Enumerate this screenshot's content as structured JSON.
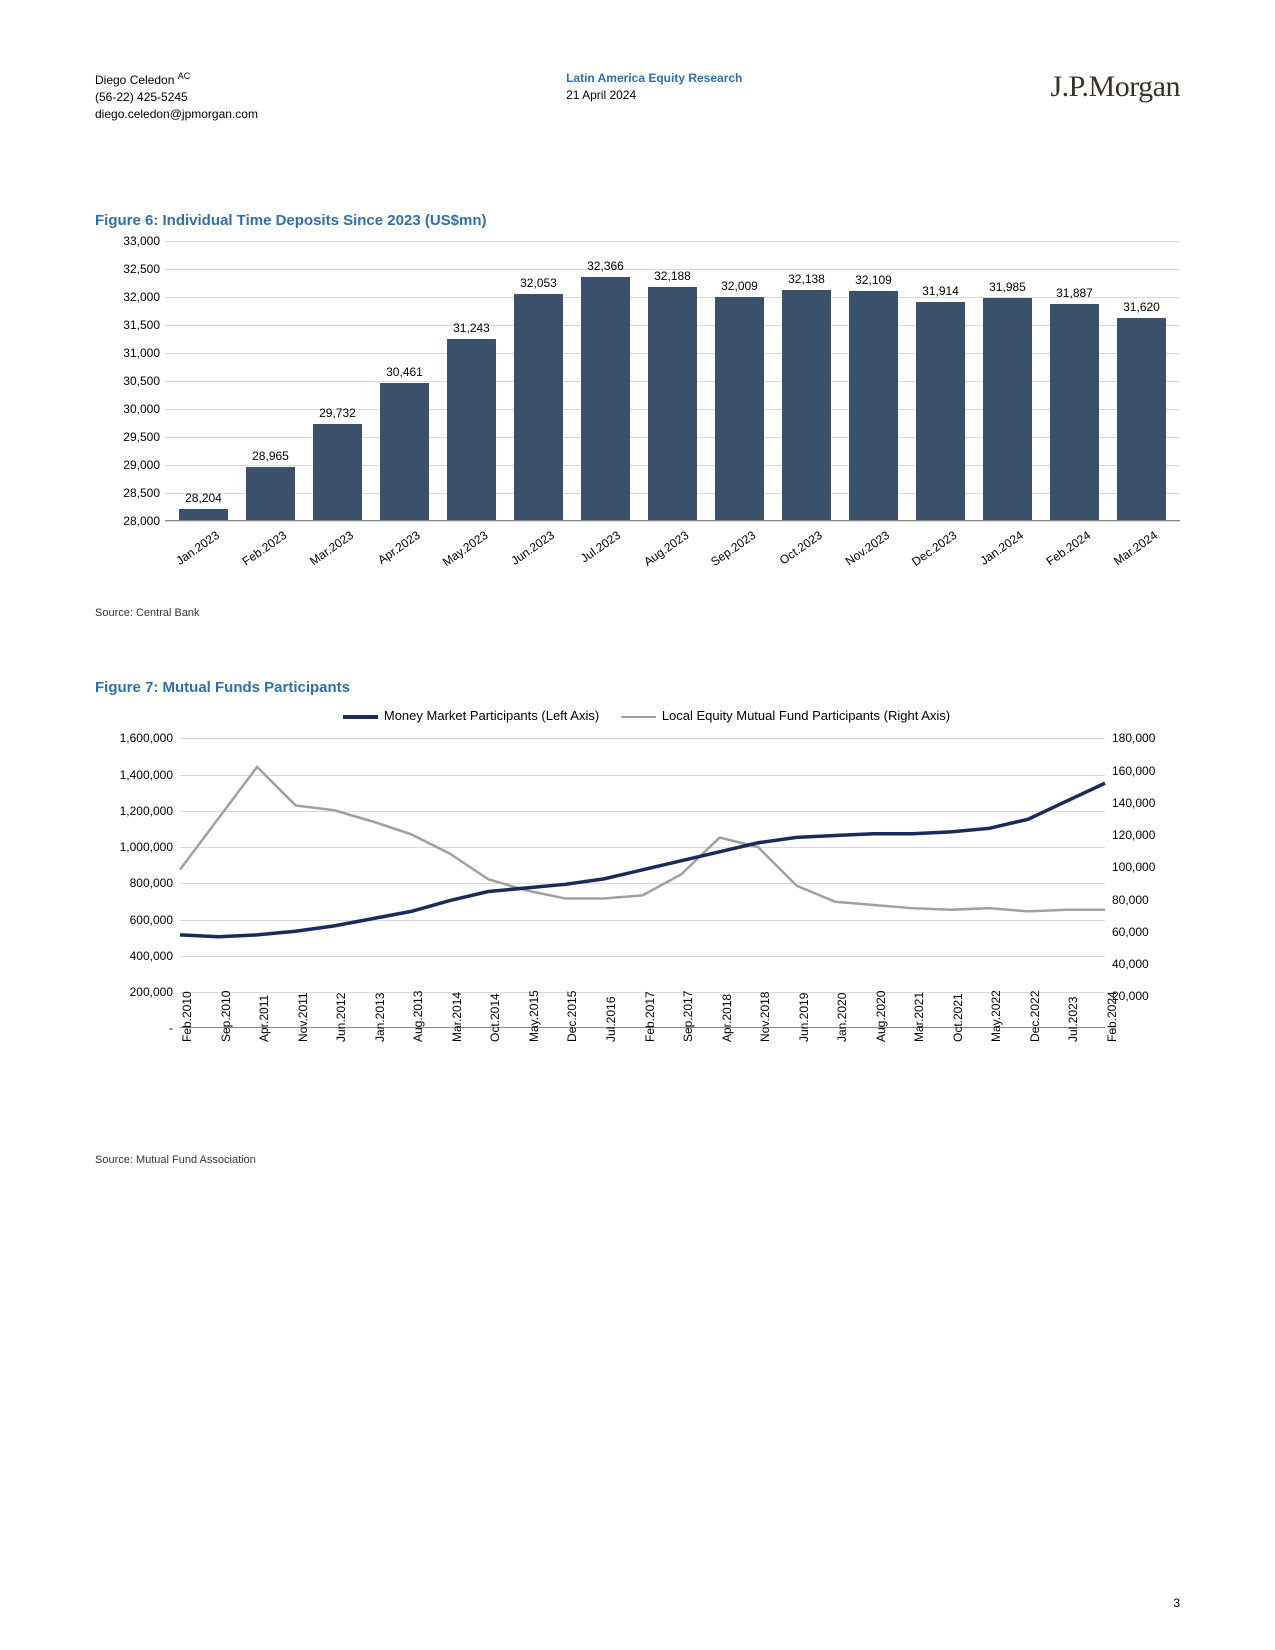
{
  "header": {
    "author": "Diego Celedon",
    "author_sup": "AC",
    "phone": "(56-22) 425-5245",
    "email": "diego.celedon@jpmorgan.com",
    "dept": "Latin America Equity Research",
    "date": "21 April 2024",
    "logo": "J.P.Morgan"
  },
  "page_number": "3",
  "figure6": {
    "title": "Figure 6: Individual Time Deposits Since 2023 (US$mn)",
    "source": "Source: Central Bank",
    "type": "bar",
    "bar_color": "#3a506b",
    "grid_color": "#d9d9d9",
    "label_fontsize": 12,
    "ylim": [
      28000,
      33000
    ],
    "ytick_step": 500,
    "yticks": [
      "28,000",
      "28,500",
      "29,000",
      "29,500",
      "30,000",
      "30,500",
      "31,000",
      "31,500",
      "32,000",
      "32,500",
      "33,000"
    ],
    "categories": [
      "Jan.2023",
      "Feb.2023",
      "Mar.2023",
      "Apr.2023",
      "May.2023",
      "Jun.2023",
      "Jul.2023",
      "Aug.2023",
      "Sep.2023",
      "Oct.2023",
      "Nov.2023",
      "Dec.2023",
      "Jan.2024",
      "Feb.2024",
      "Mar.2024"
    ],
    "values": [
      28204,
      28965,
      29732,
      30461,
      31243,
      32053,
      32366,
      32188,
      32009,
      32138,
      32109,
      31914,
      31985,
      31887,
      31620
    ],
    "value_labels": [
      "28,204",
      "28,965",
      "29,732",
      "30,461",
      "31,243",
      "32,053",
      "32,366",
      "32,188",
      "32,009",
      "32,138",
      "32,109",
      "31,914",
      "31,985",
      "31,887",
      "31,620"
    ]
  },
  "figure7": {
    "title": "Figure 7: Mutual Funds Participants",
    "source": "Source: Mutual Fund Association",
    "type": "line",
    "grid_color": "#d9d9d9",
    "series": [
      {
        "name": "Money Market Participants (Left Axis)",
        "color": "#1a2a5a",
        "width": 3.5,
        "axis": "left"
      },
      {
        "name": "Local Equity Mutual Fund Participants (Right Axis)",
        "color": "#a0a0a0",
        "width": 2.5,
        "axis": "right"
      }
    ],
    "left_ylim": [
      0,
      1600000
    ],
    "left_ticks": [
      "-",
      "200,000",
      "400,000",
      "600,000",
      "800,000",
      "1,000,000",
      "1,200,000",
      "1,400,000",
      "1,600,000"
    ],
    "right_ylim": [
      0,
      180000
    ],
    "right_ticks": [
      "-",
      "20,000",
      "40,000",
      "60,000",
      "80,000",
      "100,000",
      "120,000",
      "140,000",
      "160,000",
      "180,000"
    ],
    "x_labels": [
      "Feb.2010",
      "Sep.2010",
      "Apr.2011",
      "Nov.2011",
      "Jun.2012",
      "Jan.2013",
      "Aug.2013",
      "Mar.2014",
      "Oct.2014",
      "May.2015",
      "Dec.2015",
      "Jul.2016",
      "Feb.2017",
      "Sep.2017",
      "Apr.2018",
      "Nov.2018",
      "Jun.2019",
      "Jan.2020",
      "Aug.2020",
      "Mar.2021",
      "Oct.2021",
      "May.2022",
      "Dec.2022",
      "Jul.2023",
      "Feb.2024"
    ],
    "money_market": [
      510000,
      500000,
      510000,
      530000,
      560000,
      600000,
      640000,
      700000,
      750000,
      770000,
      790000,
      820000,
      870000,
      920000,
      970000,
      1020000,
      1050000,
      1060000,
      1070000,
      1070000,
      1080000,
      1100000,
      1150000,
      1250000,
      1350000
    ],
    "local_equity": [
      98000,
      130000,
      162000,
      138000,
      135000,
      128000,
      120000,
      108000,
      92000,
      85000,
      80000,
      80000,
      82000,
      95000,
      118000,
      112000,
      88000,
      78000,
      76000,
      74000,
      73000,
      74000,
      72000,
      73000,
      73000
    ]
  }
}
